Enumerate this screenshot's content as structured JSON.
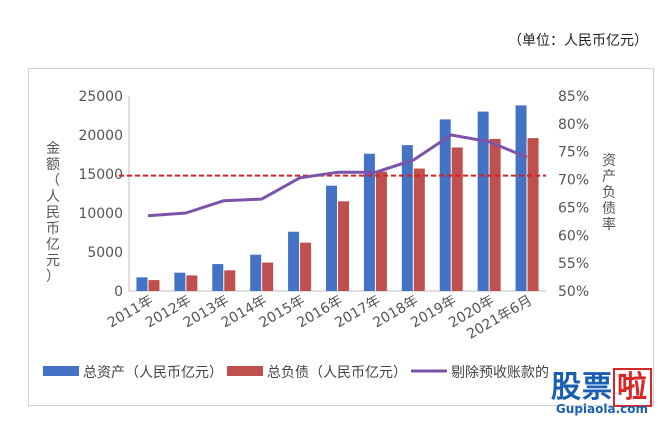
{
  "unit_note": "（单位：人民币亿元）",
  "chart_data": {
    "type": "bar",
    "categories": [
      "2011年",
      "2012年",
      "2013年",
      "2014年",
      "2015年",
      "2016年",
      "2017年",
      "2018年",
      "2019年",
      "2020年",
      "2021年6月"
    ],
    "series": [
      {
        "name": "总资产（人民币亿元）",
        "kind": "bar",
        "axis": "left",
        "color": "#4472c4",
        "values": [
          1750,
          2350,
          3450,
          4650,
          7600,
          13500,
          17600,
          18700,
          22000,
          23000,
          23800
        ]
      },
      {
        "name": "总负债（人民币亿元）",
        "kind": "bar",
        "axis": "left",
        "color": "#c0504d",
        "values": [
          1400,
          2000,
          2650,
          3650,
          6200,
          11500,
          15300,
          15700,
          18400,
          19500,
          19600
        ]
      },
      {
        "name": "剔除预收账款的",
        "kind": "line",
        "axis": "right",
        "color": "#7b54a8",
        "values": [
          63.5,
          64.0,
          66.2,
          66.5,
          70.3,
          71.3,
          71.3,
          73.5,
          78.0,
          76.8,
          74.0
        ]
      }
    ],
    "reference_line": {
      "value": 70.7,
      "axis": "right",
      "color": "#d62020",
      "style": "dashed"
    },
    "ylabel": "金额（人民币亿元）",
    "y2label": "资产负债率",
    "ylim": [
      0,
      25000
    ],
    "yticks": [
      "0",
      "5000",
      "10000",
      "15000",
      "20000",
      "25000"
    ],
    "y2lim": [
      50,
      85
    ],
    "y2ticks": [
      "50%",
      "55%",
      "60%",
      "65%",
      "70%",
      "75%",
      "80%",
      "85%"
    ],
    "grid": false,
    "legend_position": "bottom"
  },
  "watermark": {
    "brand": "股票",
    "accent": "啦",
    "url": "Gupiaola.com"
  }
}
